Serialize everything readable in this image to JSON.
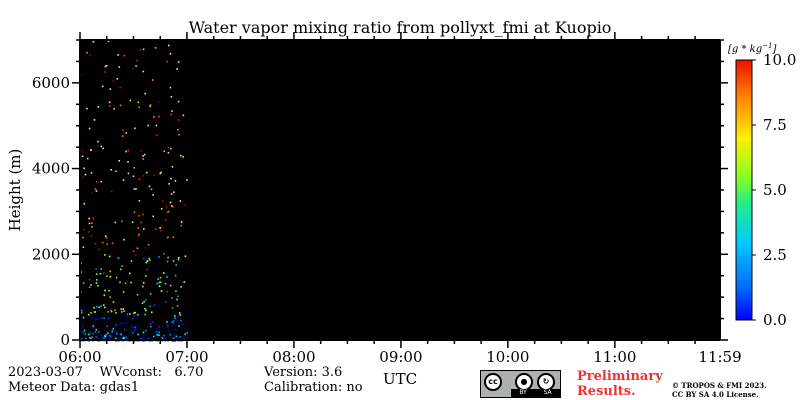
{
  "chart_data": {
    "type": "heatmap",
    "title": "Water vapor mixing ratio from pollyxt_fmi at Kuopio",
    "xlabel": "UTC",
    "ylabel": "Height (m)",
    "x_tick_labels": [
      "06:00",
      "07:00",
      "08:00",
      "09:00",
      "10:00",
      "11:00",
      "11:59"
    ],
    "x_range_hours": [
      6.0,
      11.983
    ],
    "y_ticks": [
      0,
      2000,
      4000,
      6000
    ],
    "ylim": [
      0,
      7000
    ],
    "colorbar": {
      "unit_label": "[g * kg",
      "unit_exponent": "−1",
      "unit_close": "]",
      "ticks": [
        "0.0",
        "2.5",
        "5.0",
        "7.5",
        "10.0"
      ],
      "range": [
        0,
        10
      ],
      "colormap": "jet"
    },
    "background_color": "#000000",
    "data_extent_hours": [
      6.0,
      7.0
    ],
    "grid": false
  },
  "footer": {
    "date": "2023-03-07",
    "wvconst_label": "WVconst:",
    "wvconst_value": "6.70",
    "meteor_data": "Meteor Data: gdas1",
    "version": "Version: 3.6",
    "calibration": "Calibration: no",
    "license_badge": {
      "cc": "cc",
      "by": "BY",
      "sa": "SA"
    },
    "preliminary_line1": "Preliminary",
    "preliminary_line2": "Results.",
    "copyright_line1": "© TROPOS & FMI 2023.",
    "copyright_line2": "CC BY SA 4.0 License."
  }
}
